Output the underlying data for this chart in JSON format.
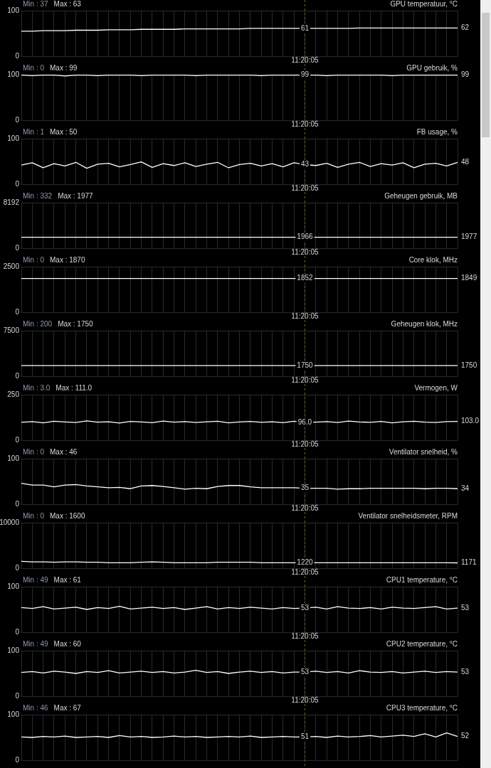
{
  "chart_data": [
    {
      "type": "line",
      "title": "GPU temperatuur, °C",
      "annotations": [
        "Min : 37",
        "Max : 63",
        "11:20:05"
      ],
      "categories": [
        null,
        null,
        null,
        null,
        null,
        null,
        null,
        null,
        null,
        null,
        null,
        null,
        null,
        null,
        null,
        null,
        null,
        null,
        null,
        null,
        null,
        null,
        null,
        null,
        null,
        null,
        null,
        null,
        null,
        null,
        null,
        null,
        null,
        null,
        null,
        null,
        null,
        null,
        null,
        null,
        null
      ],
      "ylim": [
        0,
        100
      ],
      "yticks": [
        0,
        100
      ],
      "grid": true,
      "series": [
        {
          "color": "#ffffff",
          "values": [
            55,
            55,
            56,
            56,
            56,
            57,
            57,
            57,
            58,
            58,
            58,
            59,
            59,
            59,
            59,
            60,
            60,
            60,
            60,
            60,
            60,
            61,
            61,
            61,
            61,
            61,
            61,
            61,
            61,
            61,
            61,
            62,
            62,
            62,
            62,
            62,
            62,
            62,
            62,
            62,
            62
          ],
          "value_labels": [
            null,
            null,
            null,
            null,
            null,
            null,
            null,
            null,
            null,
            null,
            null,
            null,
            null,
            null,
            null,
            null,
            null,
            null,
            null,
            null,
            null,
            null,
            null,
            null,
            null,
            null,
            "61",
            null,
            null,
            null,
            null,
            null,
            null,
            null,
            null,
            null,
            null,
            null,
            null,
            null,
            "62"
          ]
        }
      ]
    },
    {
      "type": "line",
      "title": "GPU gebruik, %",
      "annotations": [
        "Min : 0",
        "Max : 99",
        "11:20:05"
      ],
      "categories": [
        null,
        null,
        null,
        null,
        null,
        null,
        null,
        null,
        null,
        null,
        null,
        null,
        null,
        null,
        null,
        null,
        null,
        null,
        null,
        null,
        null,
        null,
        null,
        null,
        null,
        null,
        null,
        null,
        null,
        null,
        null,
        null,
        null,
        null,
        null,
        null,
        null,
        null,
        null,
        null,
        null
      ],
      "ylim": [
        0,
        100
      ],
      "yticks": [
        0,
        100
      ],
      "grid": true,
      "series": [
        {
          "color": "#ffffff",
          "values": [
            99,
            98,
            99,
            99,
            97,
            99,
            99,
            98,
            99,
            99,
            99,
            98,
            99,
            99,
            99,
            99,
            98,
            99,
            99,
            99,
            99,
            99,
            98,
            99,
            99,
            99,
            99,
            99,
            98,
            99,
            99,
            99,
            99,
            99,
            98,
            99,
            99,
            99,
            99,
            99,
            99
          ],
          "value_labels": [
            null,
            null,
            null,
            null,
            null,
            null,
            null,
            null,
            null,
            null,
            null,
            null,
            null,
            null,
            null,
            null,
            null,
            null,
            null,
            null,
            null,
            null,
            null,
            null,
            null,
            null,
            "99",
            null,
            null,
            null,
            null,
            null,
            null,
            null,
            null,
            null,
            null,
            null,
            null,
            null,
            "99"
          ]
        }
      ]
    },
    {
      "type": "line",
      "title": "FB usage, %",
      "annotations": [
        "Min : 1",
        "Max : 50",
        "11:20:05"
      ],
      "categories": [
        null,
        null,
        null,
        null,
        null,
        null,
        null,
        null,
        null,
        null,
        null,
        null,
        null,
        null,
        null,
        null,
        null,
        null,
        null,
        null,
        null,
        null,
        null,
        null,
        null,
        null,
        null,
        null,
        null,
        null,
        null,
        null,
        null,
        null,
        null,
        null,
        null,
        null,
        null,
        null,
        null
      ],
      "ylim": [
        0,
        100
      ],
      "yticks": [
        0,
        100
      ],
      "grid": true,
      "series": [
        {
          "color": "#ffffff",
          "values": [
            42,
            47,
            36,
            45,
            40,
            48,
            35,
            44,
            46,
            38,
            43,
            49,
            37,
            45,
            41,
            47,
            39,
            44,
            48,
            36,
            43,
            46,
            40,
            45,
            38,
            47,
            43,
            41,
            46,
            37,
            44,
            48,
            39,
            45,
            42,
            47,
            36,
            44,
            46,
            40,
            48
          ],
          "value_labels": [
            null,
            null,
            null,
            null,
            null,
            null,
            null,
            null,
            null,
            null,
            null,
            null,
            null,
            null,
            null,
            null,
            null,
            null,
            null,
            null,
            null,
            null,
            null,
            null,
            null,
            null,
            "43",
            null,
            null,
            null,
            null,
            null,
            null,
            null,
            null,
            null,
            null,
            null,
            null,
            null,
            "48"
          ]
        }
      ]
    },
    {
      "type": "line",
      "title": "Geheugen gebruik, MB",
      "annotations": [
        "Min : 332",
        "Max : 1977",
        "11:20:05"
      ],
      "categories": [
        null,
        null,
        null,
        null,
        null,
        null,
        null,
        null,
        null,
        null,
        null,
        null,
        null,
        null,
        null,
        null,
        null,
        null,
        null,
        null,
        null,
        null,
        null,
        null,
        null,
        null,
        null,
        null,
        null,
        null,
        null,
        null,
        null,
        null,
        null,
        null,
        null,
        null,
        null,
        null,
        null
      ],
      "ylim": [
        0,
        8192
      ],
      "yticks": [
        0,
        8192
      ],
      "grid": true,
      "series": [
        {
          "color": "#ffffff",
          "values": [
            1966,
            1966,
            1966,
            1966,
            1966,
            1966,
            1966,
            1966,
            1966,
            1966,
            1966,
            1966,
            1966,
            1966,
            1966,
            1966,
            1966,
            1966,
            1966,
            1966,
            1966,
            1966,
            1966,
            1966,
            1966,
            1966,
            1966,
            1966,
            1966,
            1966,
            1966,
            1966,
            1966,
            1966,
            1966,
            1966,
            1966,
            1966,
            1966,
            1966,
            1977
          ],
          "value_labels": [
            null,
            null,
            null,
            null,
            null,
            null,
            null,
            null,
            null,
            null,
            null,
            null,
            null,
            null,
            null,
            null,
            null,
            null,
            null,
            null,
            null,
            null,
            null,
            null,
            null,
            null,
            "1966",
            null,
            null,
            null,
            null,
            null,
            null,
            null,
            null,
            null,
            null,
            null,
            null,
            null,
            "1977"
          ]
        }
      ]
    },
    {
      "type": "line",
      "title": "Core klok, MHz",
      "annotations": [
        "Min : 0",
        "Max : 1870",
        "11:20:05"
      ],
      "categories": [
        null,
        null,
        null,
        null,
        null,
        null,
        null,
        null,
        null,
        null,
        null,
        null,
        null,
        null,
        null,
        null,
        null,
        null,
        null,
        null,
        null,
        null,
        null,
        null,
        null,
        null,
        null,
        null,
        null,
        null,
        null,
        null,
        null,
        null,
        null,
        null,
        null,
        null,
        null,
        null,
        null
      ],
      "ylim": [
        0,
        2500
      ],
      "yticks": [
        0,
        2500
      ],
      "grid": true,
      "series": [
        {
          "color": "#ffffff",
          "values": [
            1850,
            1850,
            1850,
            1850,
            1850,
            1850,
            1850,
            1850,
            1850,
            1850,
            1850,
            1850,
            1850,
            1850,
            1850,
            1850,
            1850,
            1850,
            1850,
            1850,
            1850,
            1850,
            1850,
            1850,
            1850,
            1850,
            1852,
            1850,
            1850,
            1850,
            1850,
            1850,
            1850,
            1850,
            1850,
            1850,
            1850,
            1850,
            1850,
            1850,
            1849
          ],
          "value_labels": [
            null,
            null,
            null,
            null,
            null,
            null,
            null,
            null,
            null,
            null,
            null,
            null,
            null,
            null,
            null,
            null,
            null,
            null,
            null,
            null,
            null,
            null,
            null,
            null,
            null,
            null,
            "1852",
            null,
            null,
            null,
            null,
            null,
            null,
            null,
            null,
            null,
            null,
            null,
            null,
            null,
            "1849"
          ]
        }
      ]
    },
    {
      "type": "line",
      "title": "Geheugen klok, MHz",
      "annotations": [
        "Min : 200",
        "Max : 1750",
        "11:20:05"
      ],
      "categories": [
        null,
        null,
        null,
        null,
        null,
        null,
        null,
        null,
        null,
        null,
        null,
        null,
        null,
        null,
        null,
        null,
        null,
        null,
        null,
        null,
        null,
        null,
        null,
        null,
        null,
        null,
        null,
        null,
        null,
        null,
        null,
        null,
        null,
        null,
        null,
        null,
        null,
        null,
        null,
        null,
        null
      ],
      "ylim": [
        0,
        7500
      ],
      "yticks": [
        0,
        7500
      ],
      "grid": true,
      "series": [
        {
          "color": "#ffffff",
          "values": [
            1750,
            1750,
            1750,
            1750,
            1750,
            1750,
            1750,
            1750,
            1750,
            1750,
            1750,
            1750,
            1750,
            1750,
            1750,
            1750,
            1750,
            1750,
            1750,
            1750,
            1750,
            1750,
            1750,
            1750,
            1750,
            1750,
            1750,
            1750,
            1750,
            1750,
            1750,
            1750,
            1750,
            1750,
            1750,
            1750,
            1750,
            1750,
            1750,
            1750,
            1750
          ],
          "value_labels": [
            null,
            null,
            null,
            null,
            null,
            null,
            null,
            null,
            null,
            null,
            null,
            null,
            null,
            null,
            null,
            null,
            null,
            null,
            null,
            null,
            null,
            null,
            null,
            null,
            null,
            null,
            "1750",
            null,
            null,
            null,
            null,
            null,
            null,
            null,
            null,
            null,
            null,
            null,
            null,
            null,
            "1750"
          ]
        }
      ]
    },
    {
      "type": "line",
      "title": "Vermogen, W",
      "annotations": [
        "Min : 3.0",
        "Max : 111.0",
        "11:20:05"
      ],
      "categories": [
        null,
        null,
        null,
        null,
        null,
        null,
        null,
        null,
        null,
        null,
        null,
        null,
        null,
        null,
        null,
        null,
        null,
        null,
        null,
        null,
        null,
        null,
        null,
        null,
        null,
        null,
        null,
        null,
        null,
        null,
        null,
        null,
        null,
        null,
        null,
        null,
        null,
        null,
        null,
        null,
        null
      ],
      "ylim": [
        0,
        250
      ],
      "yticks": [
        0,
        250
      ],
      "grid": true,
      "series": [
        {
          "color": "#ffffff",
          "values": [
            98,
            102,
            95,
            104,
            100,
            97,
            106,
            99,
            101,
            94,
            103,
            100,
            96,
            105,
            99,
            102,
            97,
            101,
            104,
            95,
            100,
            103,
            98,
            101,
            96,
            104,
            96,
            99,
            102,
            97,
            105,
            100,
            98,
            103,
            95,
            101,
            104,
            99,
            97,
            102,
            103
          ],
          "value_labels": [
            null,
            null,
            null,
            null,
            null,
            null,
            null,
            null,
            null,
            null,
            null,
            null,
            null,
            null,
            null,
            null,
            null,
            null,
            null,
            null,
            null,
            null,
            null,
            null,
            null,
            null,
            "96.0",
            null,
            null,
            null,
            null,
            null,
            null,
            null,
            null,
            null,
            null,
            null,
            null,
            null,
            "103.0"
          ]
        }
      ]
    },
    {
      "type": "line",
      "title": "Ventilator snelheid, %",
      "annotations": [
        "Min : 0",
        "Max : 46",
        "11:20:05"
      ],
      "categories": [
        null,
        null,
        null,
        null,
        null,
        null,
        null,
        null,
        null,
        null,
        null,
        null,
        null,
        null,
        null,
        null,
        null,
        null,
        null,
        null,
        null,
        null,
        null,
        null,
        null,
        null,
        null,
        null,
        null,
        null,
        null,
        null,
        null,
        null,
        null,
        null,
        null,
        null,
        null,
        null,
        null
      ],
      "ylim": [
        0,
        100
      ],
      "yticks": [
        0,
        100
      ],
      "grid": true,
      "series": [
        {
          "color": "#ffffff",
          "values": [
            46,
            42,
            42,
            38,
            42,
            43,
            40,
            38,
            36,
            37,
            34,
            40,
            41,
            39,
            36,
            33,
            35,
            34,
            39,
            41,
            41,
            38,
            36,
            36,
            36,
            36,
            35,
            35,
            35,
            33,
            34,
            34,
            35,
            35,
            35,
            35,
            35,
            34,
            35,
            35,
            34
          ],
          "value_labels": [
            null,
            null,
            null,
            null,
            null,
            null,
            null,
            null,
            null,
            null,
            null,
            null,
            null,
            null,
            null,
            null,
            null,
            null,
            null,
            null,
            null,
            null,
            null,
            null,
            null,
            null,
            "35",
            null,
            null,
            null,
            null,
            null,
            null,
            null,
            null,
            null,
            null,
            null,
            null,
            null,
            "34"
          ]
        }
      ]
    },
    {
      "type": "line",
      "title": "Ventilator snelheidsmeter, RPM",
      "annotations": [
        "Min : 0",
        "Max : 1600",
        "11:20:05"
      ],
      "categories": [
        null,
        null,
        null,
        null,
        null,
        null,
        null,
        null,
        null,
        null,
        null,
        null,
        null,
        null,
        null,
        null,
        null,
        null,
        null,
        null,
        null,
        null,
        null,
        null,
        null,
        null,
        null,
        null,
        null,
        null,
        null,
        null,
        null,
        null,
        null,
        null,
        null,
        null,
        null,
        null,
        null
      ],
      "ylim": [
        0,
        10000
      ],
      "yticks": [
        0,
        10000
      ],
      "grid": true,
      "series": [
        {
          "color": "#ffffff",
          "values": [
            1500,
            1400,
            1400,
            1300,
            1400,
            1400,
            1300,
            1300,
            1200,
            1200,
            1200,
            1300,
            1400,
            1300,
            1200,
            1200,
            1200,
            1200,
            1300,
            1300,
            1300,
            1300,
            1200,
            1200,
            1200,
            1200,
            1220,
            1200,
            1200,
            1200,
            1200,
            1200,
            1200,
            1200,
            1200,
            1200,
            1200,
            1200,
            1200,
            1200,
            1171
          ],
          "value_labels": [
            null,
            null,
            null,
            null,
            null,
            null,
            null,
            null,
            null,
            null,
            null,
            null,
            null,
            null,
            null,
            null,
            null,
            null,
            null,
            null,
            null,
            null,
            null,
            null,
            null,
            null,
            "1220",
            null,
            null,
            null,
            null,
            null,
            null,
            null,
            null,
            null,
            null,
            null,
            null,
            null,
            "1171"
          ]
        }
      ]
    },
    {
      "type": "line",
      "title": "CPU1 temperature, °C",
      "annotations": [
        "Min : 49",
        "Max : 61",
        "11:20:05"
      ],
      "categories": [
        null,
        null,
        null,
        null,
        null,
        null,
        null,
        null,
        null,
        null,
        null,
        null,
        null,
        null,
        null,
        null,
        null,
        null,
        null,
        null,
        null,
        null,
        null,
        null,
        null,
        null,
        null,
        null,
        null,
        null,
        null,
        null,
        null,
        null,
        null,
        null,
        null,
        null,
        null,
        null,
        null
      ],
      "ylim": [
        0,
        100
      ],
      "yticks": [
        0,
        100
      ],
      "grid": true,
      "series": [
        {
          "color": "#ffffff",
          "values": [
            54,
            52,
            56,
            51,
            53,
            55,
            50,
            54,
            52,
            57,
            51,
            53,
            55,
            52,
            54,
            50,
            53,
            56,
            51,
            54,
            52,
            55,
            53,
            51,
            54,
            52,
            53,
            55,
            51,
            56,
            53,
            52,
            54,
            51,
            55,
            53,
            52,
            54,
            56,
            51,
            53
          ],
          "value_labels": [
            null,
            null,
            null,
            null,
            null,
            null,
            null,
            null,
            null,
            null,
            null,
            null,
            null,
            null,
            null,
            null,
            null,
            null,
            null,
            null,
            null,
            null,
            null,
            null,
            null,
            null,
            "53",
            null,
            null,
            null,
            null,
            null,
            null,
            null,
            null,
            null,
            null,
            null,
            null,
            null,
            "53"
          ]
        }
      ]
    },
    {
      "type": "line",
      "title": "CPU2 temperature, °C",
      "annotations": [
        "Min : 49",
        "Max : 60",
        "11:20:05"
      ],
      "categories": [
        null,
        null,
        null,
        null,
        null,
        null,
        null,
        null,
        null,
        null,
        null,
        null,
        null,
        null,
        null,
        null,
        null,
        null,
        null,
        null,
        null,
        null,
        null,
        null,
        null,
        null,
        null,
        null,
        null,
        null,
        null,
        null,
        null,
        null,
        null,
        null,
        null,
        null,
        null,
        null,
        null
      ],
      "ylim": [
        0,
        100
      ],
      "yticks": [
        0,
        100
      ],
      "grid": true,
      "series": [
        {
          "color": "#ffffff",
          "values": [
            52,
            54,
            51,
            55,
            53,
            50,
            54,
            52,
            56,
            51,
            53,
            55,
            52,
            54,
            51,
            53,
            57,
            52,
            54,
            50,
            53,
            55,
            52,
            54,
            51,
            53,
            53,
            55,
            52,
            54,
            51,
            56,
            53,
            52,
            54,
            51,
            53,
            55,
            52,
            54,
            53
          ],
          "value_labels": [
            null,
            null,
            null,
            null,
            null,
            null,
            null,
            null,
            null,
            null,
            null,
            null,
            null,
            null,
            null,
            null,
            null,
            null,
            null,
            null,
            null,
            null,
            null,
            null,
            null,
            null,
            "53",
            null,
            null,
            null,
            null,
            null,
            null,
            null,
            null,
            null,
            null,
            null,
            null,
            null,
            "53"
          ]
        }
      ]
    },
    {
      "type": "line",
      "title": "CPU3 temperature, °C",
      "annotations": [
        "Min : 46",
        "Max : 67"
      ],
      "categories": [
        null,
        null,
        null,
        null,
        null,
        null,
        null,
        null,
        null,
        null,
        null,
        null,
        null,
        null,
        null,
        null,
        null,
        null,
        null,
        null,
        null,
        null,
        null,
        null,
        null,
        null,
        null,
        null,
        null,
        null,
        null,
        null,
        null,
        null,
        null,
        null,
        null,
        null,
        null,
        null,
        null
      ],
      "ylim": [
        0,
        100
      ],
      "yticks": [
        0,
        100
      ],
      "grid": true,
      "series": [
        {
          "color": "#ffffff",
          "values": [
            51,
            50,
            52,
            51,
            53,
            50,
            51,
            52,
            50,
            54,
            51,
            52,
            50,
            51,
            53,
            51,
            52,
            50,
            51,
            52,
            51,
            53,
            50,
            51,
            52,
            51,
            51,
            52,
            50,
            53,
            51,
            52,
            54,
            51,
            53,
            55,
            52,
            58,
            51,
            60,
            52
          ],
          "value_labels": [
            null,
            null,
            null,
            null,
            null,
            null,
            null,
            null,
            null,
            null,
            null,
            null,
            null,
            null,
            null,
            null,
            null,
            null,
            null,
            null,
            null,
            null,
            null,
            null,
            null,
            null,
            "51",
            null,
            null,
            null,
            null,
            null,
            null,
            null,
            null,
            null,
            null,
            null,
            null,
            null,
            "52"
          ]
        }
      ]
    }
  ]
}
